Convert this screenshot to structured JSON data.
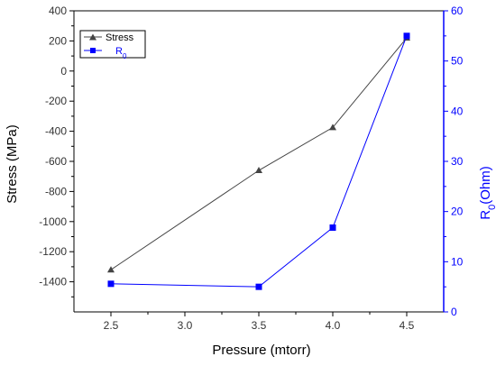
{
  "chart_data": {
    "type": "line",
    "xlabel": "Pressure (mtorr)",
    "x_ticks": [
      "2.5",
      "3.0",
      "3.5",
      "4.0",
      "4.5"
    ],
    "xlim": [
      2.25,
      4.75
    ],
    "y_left": {
      "label": "Stress (MPa)",
      "lim": [
        -1600,
        400
      ],
      "ticks": [
        "400",
        "200",
        "0",
        "-200",
        "-400",
        "-600",
        "-800",
        "-1000",
        "-1200",
        "-1400"
      ],
      "tick_values": [
        400,
        200,
        0,
        -200,
        -400,
        -600,
        -800,
        -1000,
        -1200,
        -1400
      ]
    },
    "y_right": {
      "label_main": "R",
      "label_sub": "0",
      "label_tail": "(Ohm)",
      "lim": [
        0,
        60
      ],
      "ticks": [
        "60",
        "50",
        "40",
        "30",
        "20",
        "10",
        "0"
      ],
      "tick_values": [
        60,
        50,
        40,
        30,
        20,
        10,
        0
      ],
      "color": "#0000ff"
    },
    "series": [
      {
        "name": "Stress",
        "axis": "left",
        "color": "#444444",
        "marker": "triangle",
        "x": [
          2.5,
          3.5,
          4.0,
          4.5
        ],
        "y": [
          -1320,
          -660,
          -375,
          220
        ]
      },
      {
        "name_main": "R",
        "name_sub": "0",
        "axis": "right",
        "color": "#0000ff",
        "marker": "square",
        "x": [
          2.5,
          3.5,
          4.0,
          4.5
        ],
        "y": [
          5.6,
          5.0,
          16.8,
          55.0
        ]
      }
    ],
    "legend": {
      "position": "top-left",
      "entries": [
        {
          "name": "Stress"
        },
        {
          "name_main": "R",
          "name_sub": "0"
        }
      ]
    },
    "grid": false
  }
}
